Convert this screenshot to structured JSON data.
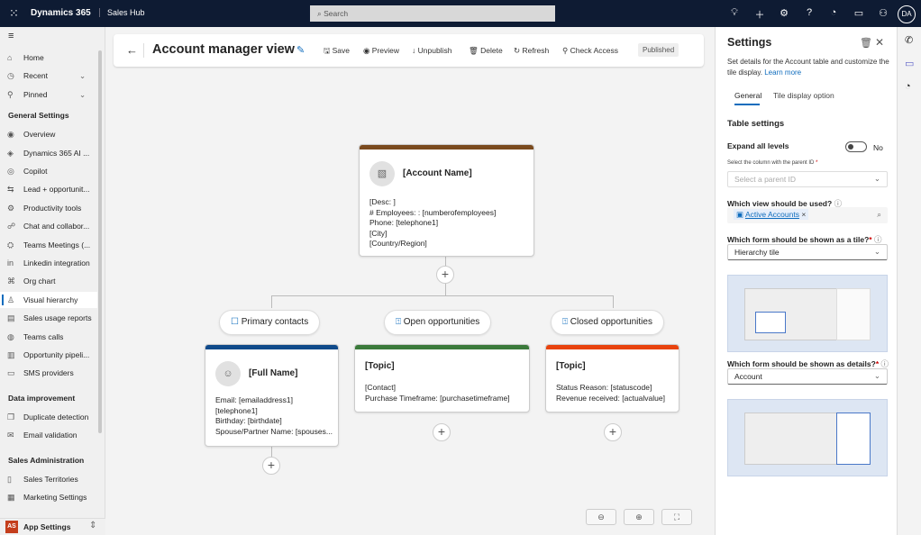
{
  "topbar": {
    "brand": "Dynamics 365",
    "app": "Sales Hub",
    "search_placeholder": "Search",
    "avatar": "DA",
    "icons": [
      "lightbulb-icon",
      "plus-icon",
      "gear-icon",
      "help-icon",
      "copilot-icon",
      "chat-icon",
      "person-feedback-icon"
    ]
  },
  "sidebar": {
    "items": [
      {
        "label": "Home",
        "icon": "⌂"
      },
      {
        "label": "Recent",
        "icon": "◷"
      },
      {
        "label": "Pinned",
        "icon": "⚲"
      }
    ],
    "general_settings_title": "General Settings",
    "general": [
      {
        "label": "Overview",
        "icon": "◉"
      },
      {
        "label": "Dynamics 365 AI ...",
        "icon": "◈"
      },
      {
        "label": "Copilot",
        "icon": "◎"
      },
      {
        "label": "Lead + opportunit...",
        "icon": "⇆"
      },
      {
        "label": "Productivity tools",
        "icon": "⚙"
      },
      {
        "label": "Chat and collabor...",
        "icon": "☍"
      },
      {
        "label": "Teams Meetings (...",
        "icon": "⛭"
      },
      {
        "label": "Linkedin integration",
        "icon": "in"
      },
      {
        "label": "Org chart",
        "icon": "⌘"
      },
      {
        "label": "Visual hierarchy",
        "icon": "♙",
        "selected": true
      },
      {
        "label": "Sales usage reports",
        "icon": "▤"
      },
      {
        "label": "Teams calls",
        "icon": "◍"
      },
      {
        "label": "Opportunity pipeli...",
        "icon": "▥"
      },
      {
        "label": "SMS providers",
        "icon": "▭"
      }
    ],
    "data_improvement_title": "Data improvement",
    "data_improvement": [
      {
        "label": "Duplicate detection",
        "icon": "❐"
      },
      {
        "label": "Email validation",
        "icon": "✉"
      }
    ],
    "sales_admin_title": "Sales Administration",
    "sales_admin": [
      {
        "label": "Sales Territories",
        "icon": "▯"
      },
      {
        "label": "Marketing Settings",
        "icon": "▦"
      }
    ],
    "app_settings": {
      "badge": "AS",
      "label": "App Settings",
      "badge_color": "#c43e1c"
    }
  },
  "commandbar": {
    "title": "Account manager view",
    "save": "Save",
    "preview": "Preview",
    "unpublish": "Unpublish",
    "delete": "Delete",
    "refresh": "Refresh",
    "check_access": "Check Access",
    "status": "Published"
  },
  "hierarchy": {
    "root": {
      "title": "[Account Name]",
      "lines": [
        "[Desc: ]",
        "# Employees: : [numberofemployees]",
        "Phone: [telephone1]",
        "[City]",
        "[Country/Region]"
      ],
      "color": "#7a4a1e"
    },
    "groups": [
      {
        "label": "Primary contacts",
        "color": "#0f4a8a",
        "tile": {
          "title": "[Full Name]",
          "lines": [
            "Email: [emailaddress1]",
            "[telephone1]",
            "Birthday: [birthdate]",
            "Spouse/Partner Name: [spouses..."
          ]
        }
      },
      {
        "label": "Open opportunities",
        "color": "#3b7a3b",
        "tile": {
          "title": "[Topic]",
          "lines": [
            "[Contact]",
            "Purchase Timeframe: [purchasetimeframe]"
          ]
        }
      },
      {
        "label": "Closed opportunities",
        "color": "#e8430e",
        "tile": {
          "title": "[Topic]",
          "lines": [
            "Status Reason: [statuscode]",
            "Revenue received: [actualvalue]"
          ]
        }
      }
    ],
    "zoom": {
      "out": "⊖",
      "in": "⊕",
      "fit": "⛶"
    }
  },
  "settings": {
    "title": "Settings",
    "description": "Set details for the Account table and customize the tile display.",
    "learn_more": "Learn more",
    "tabs": [
      "General",
      "Tile display option"
    ],
    "table_settings": "Table settings",
    "expand_label": "Expand all levels",
    "expand_value": "No",
    "expand_on": false,
    "parent_label": "Select the column with the parent ID",
    "parent_placeholder": "Select a parent ID",
    "view_label": "Which view should be used?",
    "view_value": "Active Accounts",
    "tile_form_label": "Which form should be shown as a tile?",
    "tile_form_value": "Hierarchy tile",
    "details_form_label": "Which form should be shown as details?",
    "details_form_value": "Account",
    "required_mark": "*"
  },
  "rail": {
    "icons": [
      "phone-icon",
      "chat-icon",
      "copilot-icon"
    ]
  }
}
